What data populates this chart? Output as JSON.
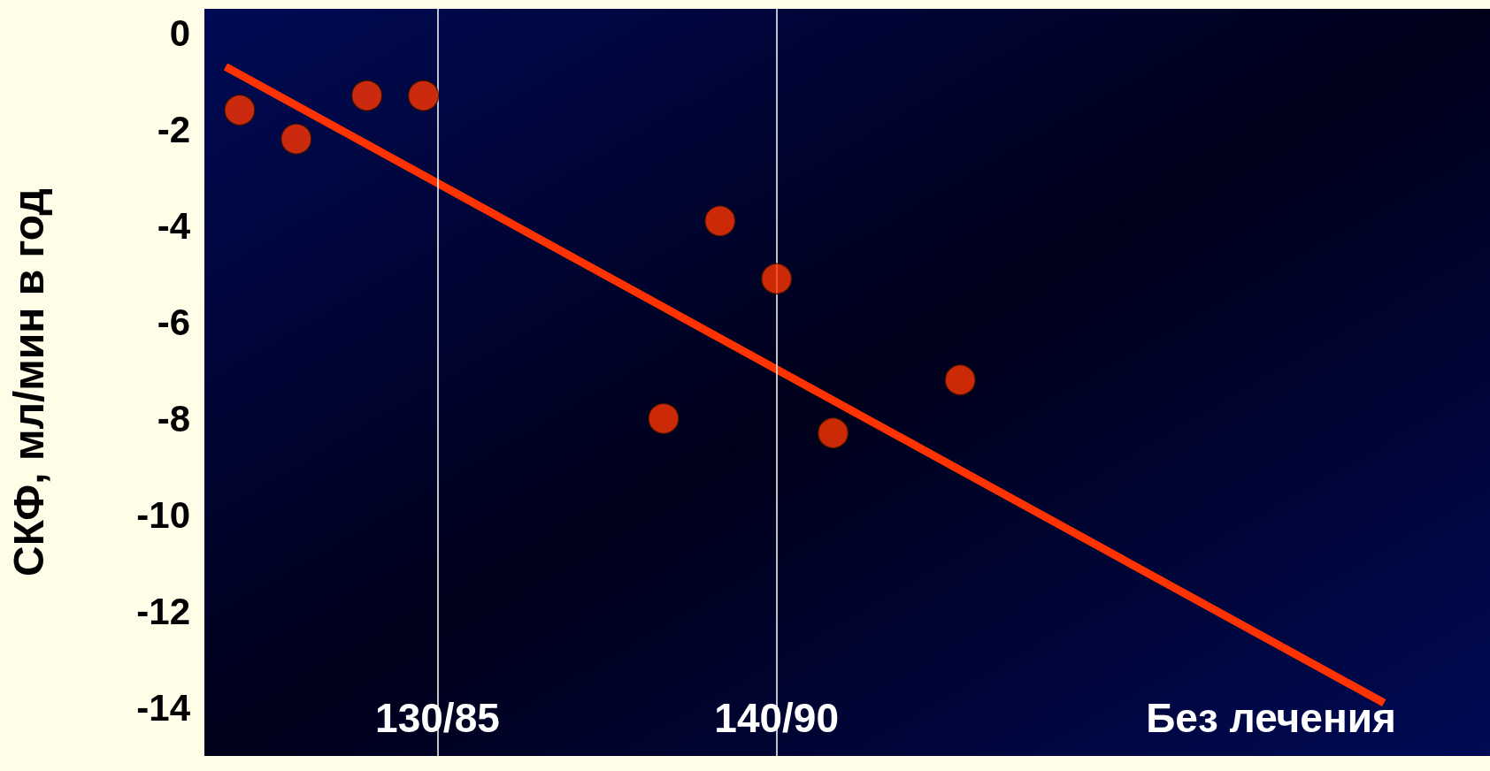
{
  "chart_data": {
    "type": "scatter",
    "ylabel": "СКФ, мл/мин в год",
    "categories": [
      null,
      null,
      null,
      null,
      null,
      null,
      null,
      null,
      null,
      null,
      null,
      null,
      null,
      null,
      null,
      null,
      "130/85",
      null,
      null,
      null,
      null,
      null,
      null,
      null,
      null,
      null,
      null,
      null,
      null,
      null,
      null,
      null,
      null,
      null,
      null,
      null,
      null,
      null,
      null,
      null,
      "140/90",
      null,
      null,
      null,
      null,
      null,
      null,
      null,
      null,
      null,
      null,
      null,
      null,
      null,
      null,
      null,
      null,
      null,
      null,
      null,
      null,
      null,
      null,
      null,
      null,
      null,
      null,
      null,
      null,
      null,
      null,
      null,
      null,
      null,
      null,
      "Без лечения",
      null,
      null,
      null,
      null,
      null,
      null,
      null,
      null,
      null,
      null,
      null,
      null,
      null,
      null,
      null
    ],
    "ylim": [
      -15,
      0.5
    ],
    "yticks": [
      0,
      -2,
      -4,
      -6,
      -8,
      -10,
      -12,
      -14
    ],
    "series": [
      {
        "color": "#ff3300",
        "values": [
          null,
          null,
          -1.6,
          null,
          null,
          null,
          -2.2,
          null,
          null,
          null,
          null,
          -1.3,
          null,
          null,
          null,
          -1.3,
          null,
          null,
          null,
          null,
          null,
          null,
          null,
          null,
          null,
          null,
          null,
          null,
          null,
          null,
          null,
          null,
          -8.0,
          null,
          null,
          null,
          -3.9,
          null,
          null,
          null,
          -5.1,
          null,
          null,
          null,
          -8.3,
          null,
          null,
          null,
          null,
          null,
          null,
          null,
          null,
          -7.2,
          null,
          null,
          null,
          null,
          null,
          null,
          null,
          null,
          null,
          null,
          null,
          null,
          null,
          null,
          null,
          null,
          null,
          null,
          null,
          null,
          null,
          null,
          null,
          null,
          null,
          null,
          null,
          null,
          null,
          null,
          null,
          null,
          null,
          null,
          null,
          null,
          null
        ]
      },
      {
        "type": "line",
        "marker": "none",
        "color": "#ff3300",
        "values": [
          null,
          -0.7,
          null,
          null,
          null,
          null,
          null,
          null,
          null,
          null,
          null,
          null,
          null,
          null,
          null,
          null,
          null,
          null,
          null,
          null,
          null,
          null,
          null,
          null,
          null,
          null,
          null,
          null,
          null,
          null,
          null,
          null,
          null,
          null,
          null,
          null,
          null,
          null,
          null,
          null,
          null,
          null,
          null,
          null,
          null,
          null,
          null,
          null,
          null,
          null,
          null,
          null,
          null,
          null,
          null,
          null,
          null,
          null,
          null,
          null,
          null,
          null,
          null,
          null,
          null,
          null,
          null,
          null,
          null,
          null,
          null,
          null,
          null,
          null,
          null,
          null,
          null,
          null,
          null,
          null,
          null,
          null,
          null,
          -13.9,
          null,
          null,
          null,
          null,
          null,
          null,
          null
        ]
      }
    ],
    "ref_lines": [
      {
        "axis": "x",
        "value": "130/85",
        "color": "#ffffff"
      },
      {
        "axis": "x",
        "value": "140/90",
        "color": "#ffffff"
      }
    ],
    "marker": "circle",
    "grid": false
  }
}
